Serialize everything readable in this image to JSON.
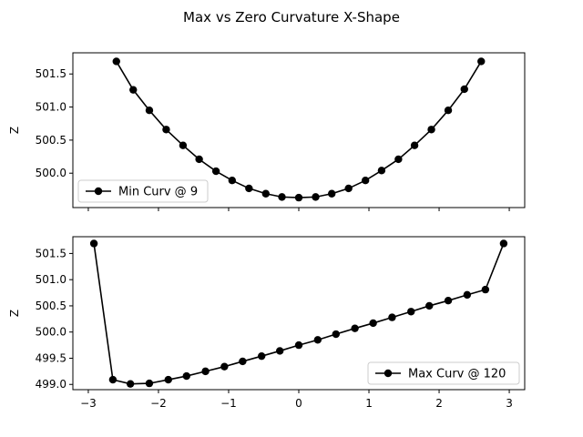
{
  "figure": {
    "title": "Max vs Zero Curvature X-Shape"
  },
  "chart_data": [
    {
      "type": "line",
      "title": "",
      "xlabel": "",
      "ylabel": "Z",
      "xlim": [
        -3.22,
        3.22
      ],
      "ylim": [
        499.48,
        501.82
      ],
      "xticks": [
        -3,
        -2,
        -1,
        0,
        1,
        2,
        3
      ],
      "show_xtick_labels": false,
      "yticks": [
        500.0,
        500.5,
        501.0,
        501.5
      ],
      "ytick_labels": [
        "500.0",
        "500.5",
        "501.0",
        "501.5"
      ],
      "grid": false,
      "legend_position": "lower-left",
      "series": [
        {
          "name": "Min Curv @ 9",
          "color": "#000000",
          "marker": "circle",
          "x": [
            -2.6,
            -2.36,
            -2.13,
            -1.89,
            -1.65,
            -1.42,
            -1.18,
            -0.95,
            -0.71,
            -0.47,
            -0.24,
            0.0,
            0.24,
            0.47,
            0.71,
            0.95,
            1.18,
            1.42,
            1.65,
            1.89,
            2.13,
            2.36,
            2.6
          ],
          "y": [
            501.69,
            501.26,
            500.95,
            500.66,
            500.42,
            500.21,
            500.03,
            499.89,
            499.77,
            499.69,
            499.64,
            499.63,
            499.64,
            499.69,
            499.77,
            499.89,
            500.04,
            500.21,
            500.42,
            500.66,
            500.95,
            501.27,
            501.69
          ]
        }
      ]
    },
    {
      "type": "line",
      "title": "",
      "xlabel": "",
      "ylabel": "Z",
      "xlim": [
        -3.22,
        3.22
      ],
      "ylim": [
        498.9,
        501.82
      ],
      "xticks": [
        -3,
        -2,
        -1,
        0,
        1,
        2,
        3
      ],
      "xtick_labels": [
        "−3",
        "−2",
        "−1",
        "0",
        "1",
        "2",
        "3"
      ],
      "show_xtick_labels": true,
      "yticks": [
        499.0,
        499.5,
        500.0,
        500.5,
        501.0,
        501.5
      ],
      "ytick_labels": [
        "499.0",
        "499.5",
        "500.0",
        "500.5",
        "501.0",
        "501.5"
      ],
      "grid": false,
      "legend_position": "lower-right",
      "series": [
        {
          "name": "Max Curv @ 120",
          "color": "#000000",
          "marker": "circle",
          "x": [
            -2.92,
            -2.65,
            -2.4,
            -2.13,
            -1.86,
            -1.6,
            -1.33,
            -1.06,
            -0.8,
            -0.53,
            -0.27,
            0.0,
            0.27,
            0.53,
            0.8,
            1.06,
            1.33,
            1.6,
            1.86,
            2.13,
            2.4,
            2.66,
            2.92
          ],
          "y": [
            501.69,
            499.09,
            499.01,
            499.02,
            499.09,
            499.16,
            499.25,
            499.34,
            499.44,
            499.54,
            499.64,
            499.75,
            499.85,
            499.96,
            500.07,
            500.17,
            500.28,
            500.39,
            500.5,
            500.6,
            500.71,
            500.81,
            501.69
          ]
        }
      ]
    }
  ]
}
